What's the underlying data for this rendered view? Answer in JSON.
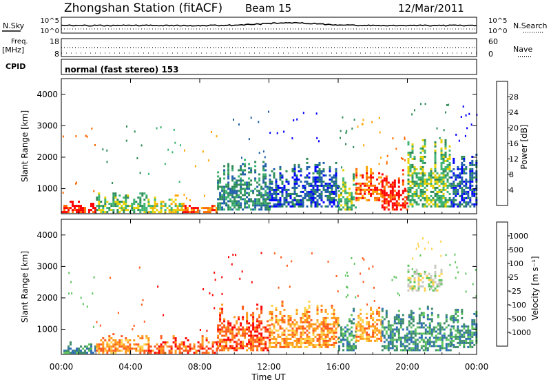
{
  "header": {
    "title": "Zhongshan Station (fitACF)",
    "beam": "Beam 15",
    "date": "12/Mar/2011"
  },
  "strip_nsky": {
    "left_label": "N.Sky",
    "right_label": "N.Search",
    "left_ticks": [
      "10^5",
      "10^0"
    ],
    "right_ticks": [
      "10^5",
      "10^0"
    ]
  },
  "strip_freq": {
    "left_label_1": "Freq.",
    "left_label_2": "[MHz]",
    "right_label": "Nave",
    "left_ticks": [
      "18",
      "8"
    ],
    "right_ticks": [
      "60",
      "0"
    ]
  },
  "strip_cpid": {
    "label": "CPID",
    "text": "normal (fast stereo) 153"
  },
  "chart_data": [
    {
      "type": "heatmap",
      "name": "power-panel",
      "ylabel": "Slant Range [km]",
      "yticks": [
        1000,
        2000,
        3000,
        4000
      ],
      "ylim": [
        200,
        4500
      ],
      "xlim": [
        0,
        24
      ],
      "colorbar": {
        "label": "Power [dB]",
        "ticks": [
          "28",
          "24",
          "20",
          "16",
          "12",
          "8",
          "4"
        ],
        "colors": [
          "#ff0000",
          "#ff6a00",
          "#ffa500",
          "#e6d200",
          "#3cb371",
          "#2e8b57",
          "#1f5fa8",
          "#0000ff"
        ]
      },
      "regions": [
        {
          "t0": 0.0,
          "t1": 2.0,
          "r0": 220,
          "r1": 650,
          "c": 0
        },
        {
          "t0": 2.0,
          "t1": 5.0,
          "r0": 220,
          "r1": 950,
          "c": 4
        },
        {
          "t0": 5.0,
          "t1": 7.0,
          "r0": 220,
          "r1": 850,
          "c": 3
        },
        {
          "t0": 7.0,
          "t1": 9.0,
          "r0": 220,
          "r1": 650,
          "c": 1
        },
        {
          "t0": 9.0,
          "t1": 12.0,
          "r0": 300,
          "r1": 2000,
          "c": 5
        },
        {
          "t0": 12.0,
          "t1": 16.0,
          "r0": 400,
          "r1": 2000,
          "c": 6
        },
        {
          "t0": 16.0,
          "t1": 17.0,
          "r0": 300,
          "r1": 1700,
          "c": 4
        },
        {
          "t0": 17.0,
          "t1": 18.5,
          "r0": 600,
          "r1": 1800,
          "c": 1
        },
        {
          "t0": 18.5,
          "t1": 20.0,
          "r0": 300,
          "r1": 1700,
          "c": 0
        },
        {
          "t0": 20.0,
          "t1": 22.5,
          "r0": 400,
          "r1": 2600,
          "c": 4
        },
        {
          "t0": 22.5,
          "t1": 24.0,
          "r0": 400,
          "r1": 2400,
          "c": 6
        }
      ]
    },
    {
      "type": "heatmap",
      "name": "velocity-panel",
      "ylabel": "Slant Range [km]",
      "xlabel": "Time UT",
      "yticks": [
        1000,
        2000,
        3000,
        4000
      ],
      "ylim": [
        200,
        4500
      ],
      "xlim": [
        0,
        24
      ],
      "xticks": [
        "00:00",
        "04:00",
        "08:00",
        "12:00",
        "16:00",
        "20:00",
        "00:00"
      ],
      "colorbar": {
        "label": "Velocity [m s⁻¹]",
        "ticks": [
          "1000",
          "500",
          "100",
          "25",
          "-25",
          "-100",
          "-500",
          "-1000"
        ],
        "colors": [
          "#1f3fa8",
          "#2e6fb0",
          "#3c8c6a",
          "#5ec45e",
          "#c8c8c0",
          "#ffd24a",
          "#ff9a1a",
          "#ff5a1a",
          "#ff0000"
        ]
      },
      "regions": [
        {
          "t0": 0.0,
          "t1": 2.0,
          "r0": 220,
          "r1": 650,
          "c": 2
        },
        {
          "t0": 2.0,
          "t1": 5.0,
          "r0": 220,
          "r1": 950,
          "c": 6
        },
        {
          "t0": 5.0,
          "t1": 9.0,
          "r0": 220,
          "r1": 850,
          "c": 7
        },
        {
          "t0": 9.0,
          "t1": 12.0,
          "r0": 300,
          "r1": 2000,
          "c": 7
        },
        {
          "t0": 12.0,
          "t1": 16.0,
          "r0": 400,
          "r1": 2000,
          "c": 6
        },
        {
          "t0": 16.0,
          "t1": 17.0,
          "r0": 300,
          "r1": 1700,
          "c": 2
        },
        {
          "t0": 17.0,
          "t1": 18.5,
          "r0": 600,
          "r1": 1800,
          "c": 6
        },
        {
          "t0": 18.5,
          "t1": 22.5,
          "r0": 300,
          "r1": 1800,
          "c": 2
        },
        {
          "t0": 20.0,
          "t1": 22.0,
          "r0": 2200,
          "r1": 3100,
          "c": 4
        },
        {
          "t0": 22.5,
          "t1": 24.0,
          "r0": 400,
          "r1": 1800,
          "c": 2
        }
      ]
    }
  ]
}
